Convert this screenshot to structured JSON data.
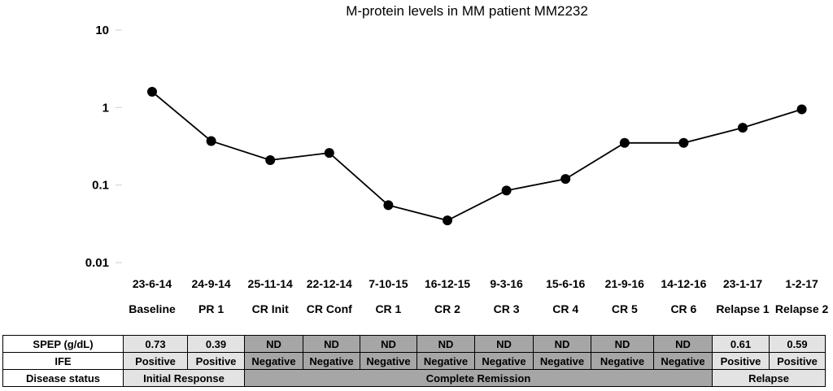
{
  "chart_data": {
    "type": "line",
    "title": "M-protein levels in MM patient MM2232",
    "yscale": "log",
    "ylim": [
      0.01,
      10
    ],
    "yticks": [
      "10",
      "1",
      "0.1",
      "0.01"
    ],
    "grid": false,
    "dates": [
      "23-6-14",
      "24-9-14",
      "25-11-14",
      "22-12-14",
      "7-10-15",
      "16-12-15",
      "9-3-16",
      "15-6-16",
      "21-9-16",
      "14-12-16",
      "23-1-17",
      "1-2-17"
    ],
    "categories": [
      "Baseline",
      "PR 1",
      "CR Init",
      "CR Conf",
      "CR 1",
      "CR 2",
      "CR 3",
      "CR 4",
      "CR 5",
      "CR 6",
      "Relapse 1",
      "Relapse 2"
    ],
    "series": [
      {
        "values": [
          1.6,
          0.37,
          0.21,
          0.26,
          0.055,
          0.035,
          0.085,
          0.12,
          0.35,
          0.35,
          0.55,
          0.95
        ]
      }
    ],
    "color": "#000000"
  },
  "table": {
    "rows": [
      {
        "label": "SPEP (g/dL)",
        "cells": [
          {
            "text": "0.73",
            "span": 1,
            "shade": "light"
          },
          {
            "text": "0.39",
            "span": 1,
            "shade": "light"
          },
          {
            "text": "ND",
            "span": 1,
            "shade": "dark"
          },
          {
            "text": "ND",
            "span": 1,
            "shade": "dark"
          },
          {
            "text": "ND",
            "span": 1,
            "shade": "dark"
          },
          {
            "text": "ND",
            "span": 1,
            "shade": "dark"
          },
          {
            "text": "ND",
            "span": 1,
            "shade": "dark"
          },
          {
            "text": "ND",
            "span": 1,
            "shade": "dark"
          },
          {
            "text": "ND",
            "span": 1,
            "shade": "dark"
          },
          {
            "text": "ND",
            "span": 1,
            "shade": "dark"
          },
          {
            "text": "0.61",
            "span": 1,
            "shade": "light"
          },
          {
            "text": "0.59",
            "span": 1,
            "shade": "light"
          }
        ]
      },
      {
        "label": "IFE",
        "cells": [
          {
            "text": "Positive",
            "span": 1,
            "shade": "light"
          },
          {
            "text": "Positive",
            "span": 1,
            "shade": "light"
          },
          {
            "text": "Negative",
            "span": 1,
            "shade": "dark"
          },
          {
            "text": "Negative",
            "span": 1,
            "shade": "dark"
          },
          {
            "text": "Negative",
            "span": 1,
            "shade": "dark"
          },
          {
            "text": "Negative",
            "span": 1,
            "shade": "dark"
          },
          {
            "text": "Negative",
            "span": 1,
            "shade": "dark"
          },
          {
            "text": "Negative",
            "span": 1,
            "shade": "dark"
          },
          {
            "text": "Negative",
            "span": 1,
            "shade": "dark"
          },
          {
            "text": "Negative",
            "span": 1,
            "shade": "dark"
          },
          {
            "text": "Positive",
            "span": 1,
            "shade": "light"
          },
          {
            "text": "Positive",
            "span": 1,
            "shade": "light"
          }
        ]
      },
      {
        "label": "Disease status",
        "cells": [
          {
            "text": "Initial Response",
            "span": 2,
            "shade": "light"
          },
          {
            "text": "Complete Remission",
            "span": 8,
            "shade": "dark"
          },
          {
            "text": "Relapse",
            "span": 2,
            "shade": "light"
          }
        ]
      }
    ]
  }
}
